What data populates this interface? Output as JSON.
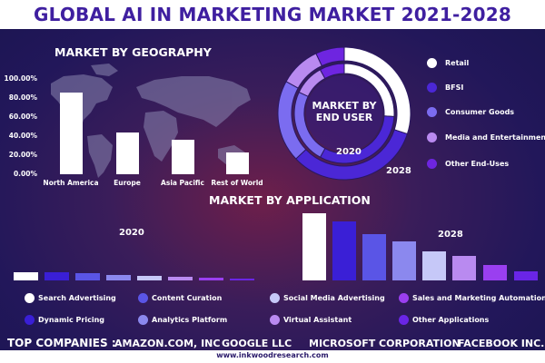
{
  "title": "GLOBAL AI IN MARKETING MARKET 2021-2028",
  "colors": {
    "title": "#3f1fa0",
    "white": "#ffffff",
    "retail": "#ffffff",
    "bfsi": "#4b27d6",
    "consumer_goods": "#7b6cf0",
    "media": "#b98af0",
    "other_end": "#6e25e0"
  },
  "geography": {
    "section_title": "MARKET BY GEOGRAPHY",
    "chart_data": {
      "type": "bar",
      "categories": [
        "North America",
        "Europe",
        "Asia Pacific",
        "Rest of World"
      ],
      "values": [
        90,
        46,
        38,
        24
      ],
      "ylim": [
        0,
        100
      ],
      "yticks": [
        "0.00%",
        "20.00%",
        "40.00%",
        "60.00%",
        "80.00%",
        "100.00%"
      ]
    }
  },
  "end_user": {
    "section_title": "MARKET BY END USER",
    "title_line1": "MARKET BY",
    "title_line2": "END USER",
    "year_inner": "2020",
    "year_outer": "2028",
    "chart_data": [
      {
        "type": "pie",
        "series": "2020",
        "labels": [
          "Retail",
          "BFSI",
          "Consumer Goods",
          "Media and Entertainment",
          "Other End-Uses"
        ],
        "values": [
          26,
          32,
          24,
          10,
          8
        ]
      },
      {
        "type": "pie",
        "series": "2028",
        "labels": [
          "Retail",
          "BFSI",
          "Consumer Goods",
          "Media and Entertainment",
          "Other End-Uses"
        ],
        "values": [
          30,
          33,
          20,
          10,
          7
        ]
      }
    ],
    "legend": [
      {
        "label": "Retail",
        "color": "#ffffff"
      },
      {
        "label": "BFSI",
        "color": "#4b27d6"
      },
      {
        "label": "Consumer Goods",
        "color": "#7b6cf0"
      },
      {
        "label": "Media and Entertainment",
        "color": "#b98af0"
      },
      {
        "label": "Other End-Uses",
        "color": "#6e25e0"
      }
    ]
  },
  "application": {
    "section_title": "MARKET BY APPLICATION",
    "year_2020": "2020",
    "year_2028": "2028",
    "chart_data": {
      "type": "bar",
      "categories": [
        "Search Advertising",
        "Dynamic Pricing",
        "Content Curation",
        "Analytics Platform",
        "Social Media Advertising",
        "Virtual Assistant",
        "Sales and Marketing Automation",
        "Other Applications"
      ],
      "series": [
        {
          "name": "2020",
          "values": [
            10,
            9,
            8,
            6,
            5,
            4,
            3,
            2
          ]
        },
        {
          "name": "2028",
          "values": [
            78,
            68,
            54,
            45,
            34,
            28,
            18,
            11
          ]
        }
      ],
      "ylim": [
        0,
        80
      ]
    },
    "bar_colors": [
      "#ffffff",
      "#3a1fd6",
      "#5a55e6",
      "#8b88ee",
      "#c6c8f8",
      "#b98af0",
      "#9a3ff0",
      "#6a25e6"
    ],
    "legend": [
      {
        "label": "Search Advertising",
        "color": "#ffffff"
      },
      {
        "label": "Content Curation",
        "color": "#5a55e6"
      },
      {
        "label": "Social Media Advertising",
        "color": "#c6c8f8"
      },
      {
        "label": "Sales and Marketing Automation",
        "color": "#9a3ff0"
      },
      {
        "label": "Dynamic Pricing",
        "color": "#3a1fd6"
      },
      {
        "label": "Analytics Platform",
        "color": "#8b88ee"
      },
      {
        "label": "Virtual Assistant",
        "color": "#b98af0"
      },
      {
        "label": "Other Applications",
        "color": "#6a25e6"
      }
    ]
  },
  "companies": {
    "label": "TOP COMPANIES :",
    "items": [
      "AMAZON.COM, INC",
      "GOOGLE LLC",
      "MICROSOFT CORPORATION",
      "FACEBOOK INC."
    ]
  },
  "footer": {
    "url": "www.inkwoodresearch.com"
  }
}
